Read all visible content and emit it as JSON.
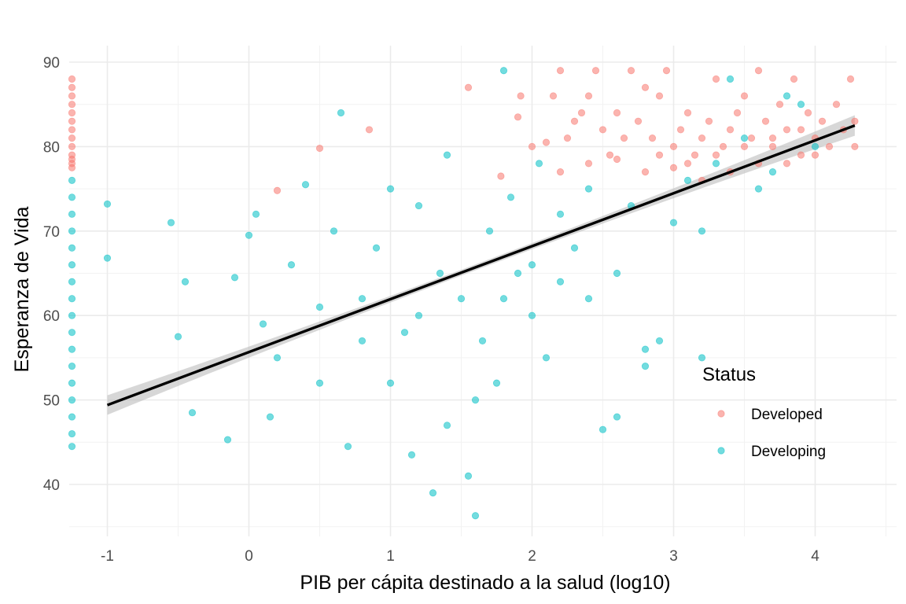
{
  "chart_data": {
    "type": "scatter",
    "xlabel": "PIB per cápita destinado a la salud (log10)",
    "ylabel": "Esperanza de Vida",
    "xlim": [
      -1.25,
      4.5
    ],
    "ylim": [
      34.5,
      90.5
    ],
    "x_ticks": [
      -1,
      0,
      1,
      2,
      3,
      4
    ],
    "y_ticks": [
      40,
      50,
      60,
      70,
      80,
      90
    ],
    "x_tick_labels": [
      "-1",
      "0",
      "1",
      "2",
      "3",
      "4"
    ],
    "y_tick_labels": [
      "40",
      "50",
      "60",
      "70",
      "80",
      "90"
    ],
    "grid": true,
    "legend": {
      "title": "Status",
      "position": "right-inside-bottom"
    },
    "point_opacity": 0.55,
    "series": [
      {
        "name": "Developed",
        "color": "#F8766D",
        "points": [
          [
            -1.25,
            88
          ],
          [
            -1.25,
            87
          ],
          [
            -1.25,
            86
          ],
          [
            -1.25,
            85
          ],
          [
            -1.25,
            84
          ],
          [
            -1.25,
            83
          ],
          [
            -1.25,
            82
          ],
          [
            -1.25,
            81
          ],
          [
            -1.25,
            80
          ],
          [
            -1.25,
            79
          ],
          [
            -1.25,
            78.5
          ],
          [
            -1.25,
            78
          ],
          [
            -1.25,
            77.5
          ],
          [
            0.2,
            74.8
          ],
          [
            0.5,
            79.8
          ],
          [
            0.85,
            82
          ],
          [
            1.55,
            87
          ],
          [
            1.78,
            76.5
          ],
          [
            1.9,
            83.5
          ],
          [
            1.92,
            86
          ],
          [
            2.0,
            80
          ],
          [
            2.1,
            80.5
          ],
          [
            2.15,
            86
          ],
          [
            2.2,
            89
          ],
          [
            2.25,
            81
          ],
          [
            2.3,
            83
          ],
          [
            2.35,
            84
          ],
          [
            2.4,
            86
          ],
          [
            2.45,
            89
          ],
          [
            2.5,
            82
          ],
          [
            2.55,
            79
          ],
          [
            2.6,
            84
          ],
          [
            2.65,
            81
          ],
          [
            2.7,
            89
          ],
          [
            2.75,
            83
          ],
          [
            2.8,
            87
          ],
          [
            2.85,
            81
          ],
          [
            2.9,
            86
          ],
          [
            2.95,
            89
          ],
          [
            3.0,
            80
          ],
          [
            3.05,
            82
          ],
          [
            3.1,
            84
          ],
          [
            3.15,
            79
          ],
          [
            3.2,
            81
          ],
          [
            3.25,
            83
          ],
          [
            3.3,
            88
          ],
          [
            3.35,
            80
          ],
          [
            3.4,
            82
          ],
          [
            3.45,
            84
          ],
          [
            3.5,
            86
          ],
          [
            3.55,
            81
          ],
          [
            3.6,
            89
          ],
          [
            3.65,
            83
          ],
          [
            3.7,
            80
          ],
          [
            3.75,
            85
          ],
          [
            3.8,
            82
          ],
          [
            3.85,
            88
          ],
          [
            3.9,
            79
          ],
          [
            3.95,
            84
          ],
          [
            4.0,
            81
          ],
          [
            4.05,
            83
          ],
          [
            4.1,
            80
          ],
          [
            4.15,
            85
          ],
          [
            4.2,
            82
          ],
          [
            4.25,
            88
          ],
          [
            4.28,
            83
          ],
          [
            4.28,
            80
          ],
          [
            2.4,
            78
          ],
          [
            2.6,
            78.5
          ],
          [
            2.8,
            77
          ],
          [
            3.0,
            77.5
          ],
          [
            3.2,
            76
          ],
          [
            3.4,
            77
          ],
          [
            3.6,
            78
          ],
          [
            3.8,
            78
          ],
          [
            2.2,
            77
          ],
          [
            2.9,
            79
          ],
          [
            3.1,
            78
          ],
          [
            3.3,
            79
          ],
          [
            3.5,
            80
          ],
          [
            3.7,
            81
          ],
          [
            3.9,
            82
          ],
          [
            4.0,
            79
          ]
        ]
      },
      {
        "name": "Developing",
        "color": "#00BFC4",
        "points": [
          [
            -1.25,
            76
          ],
          [
            -1.25,
            74
          ],
          [
            -1.25,
            72
          ],
          [
            -1.25,
            70
          ],
          [
            -1.25,
            68
          ],
          [
            -1.25,
            66
          ],
          [
            -1.25,
            64
          ],
          [
            -1.25,
            62
          ],
          [
            -1.25,
            60
          ],
          [
            -1.25,
            58
          ],
          [
            -1.25,
            56
          ],
          [
            -1.25,
            54
          ],
          [
            -1.25,
            52
          ],
          [
            -1.25,
            50
          ],
          [
            -1.25,
            48
          ],
          [
            -1.25,
            46
          ],
          [
            -1.25,
            44.5
          ],
          [
            -1.0,
            73.2
          ],
          [
            -1.0,
            66.8
          ],
          [
            -0.55,
            71
          ],
          [
            -0.45,
            64
          ],
          [
            -0.4,
            48.5
          ],
          [
            -0.5,
            57.5
          ],
          [
            -0.15,
            45.3
          ],
          [
            -0.1,
            64.5
          ],
          [
            0.0,
            69.5
          ],
          [
            0.05,
            72
          ],
          [
            0.1,
            59
          ],
          [
            0.15,
            48
          ],
          [
            0.3,
            66
          ],
          [
            0.4,
            75.5
          ],
          [
            0.5,
            52
          ],
          [
            0.6,
            70
          ],
          [
            0.65,
            84
          ],
          [
            0.7,
            44.5
          ],
          [
            0.8,
            62
          ],
          [
            0.9,
            68
          ],
          [
            1.0,
            75
          ],
          [
            1.1,
            58
          ],
          [
            1.15,
            43.5
          ],
          [
            1.2,
            73
          ],
          [
            1.3,
            39
          ],
          [
            1.35,
            65
          ],
          [
            1.4,
            79
          ],
          [
            1.5,
            62
          ],
          [
            1.55,
            41
          ],
          [
            1.6,
            36.3
          ],
          [
            1.65,
            57
          ],
          [
            1.7,
            70
          ],
          [
            1.75,
            52
          ],
          [
            1.8,
            89
          ],
          [
            1.85,
            74
          ],
          [
            1.9,
            65
          ],
          [
            2.0,
            60
          ],
          [
            2.05,
            78
          ],
          [
            2.1,
            55
          ],
          [
            2.2,
            72
          ],
          [
            2.3,
            68
          ],
          [
            2.4,
            75
          ],
          [
            2.5,
            46.5
          ],
          [
            2.6,
            48
          ],
          [
            2.7,
            73
          ],
          [
            2.8,
            56
          ],
          [
            2.9,
            57
          ],
          [
            3.0,
            71
          ],
          [
            3.1,
            76
          ],
          [
            3.2,
            70
          ],
          [
            3.3,
            78
          ],
          [
            3.4,
            88
          ],
          [
            3.5,
            81
          ],
          [
            3.6,
            75
          ],
          [
            3.7,
            77
          ],
          [
            3.8,
            86
          ],
          [
            3.9,
            85
          ],
          [
            4.0,
            80
          ],
          [
            0.2,
            55
          ],
          [
            0.5,
            61
          ],
          [
            0.8,
            57
          ],
          [
            1.0,
            52
          ],
          [
            1.2,
            60
          ],
          [
            1.4,
            47
          ],
          [
            1.6,
            50
          ],
          [
            1.8,
            62
          ],
          [
            2.0,
            66
          ],
          [
            2.2,
            64
          ],
          [
            2.4,
            62
          ],
          [
            2.6,
            65
          ],
          [
            2.8,
            54
          ],
          [
            3.2,
            55
          ]
        ]
      }
    ],
    "trend_line": {
      "x": [
        -1.0,
        4.28
      ],
      "y": [
        49.4,
        82.5
      ],
      "color": "#000000",
      "ci_color": "#bdbdbd"
    }
  }
}
